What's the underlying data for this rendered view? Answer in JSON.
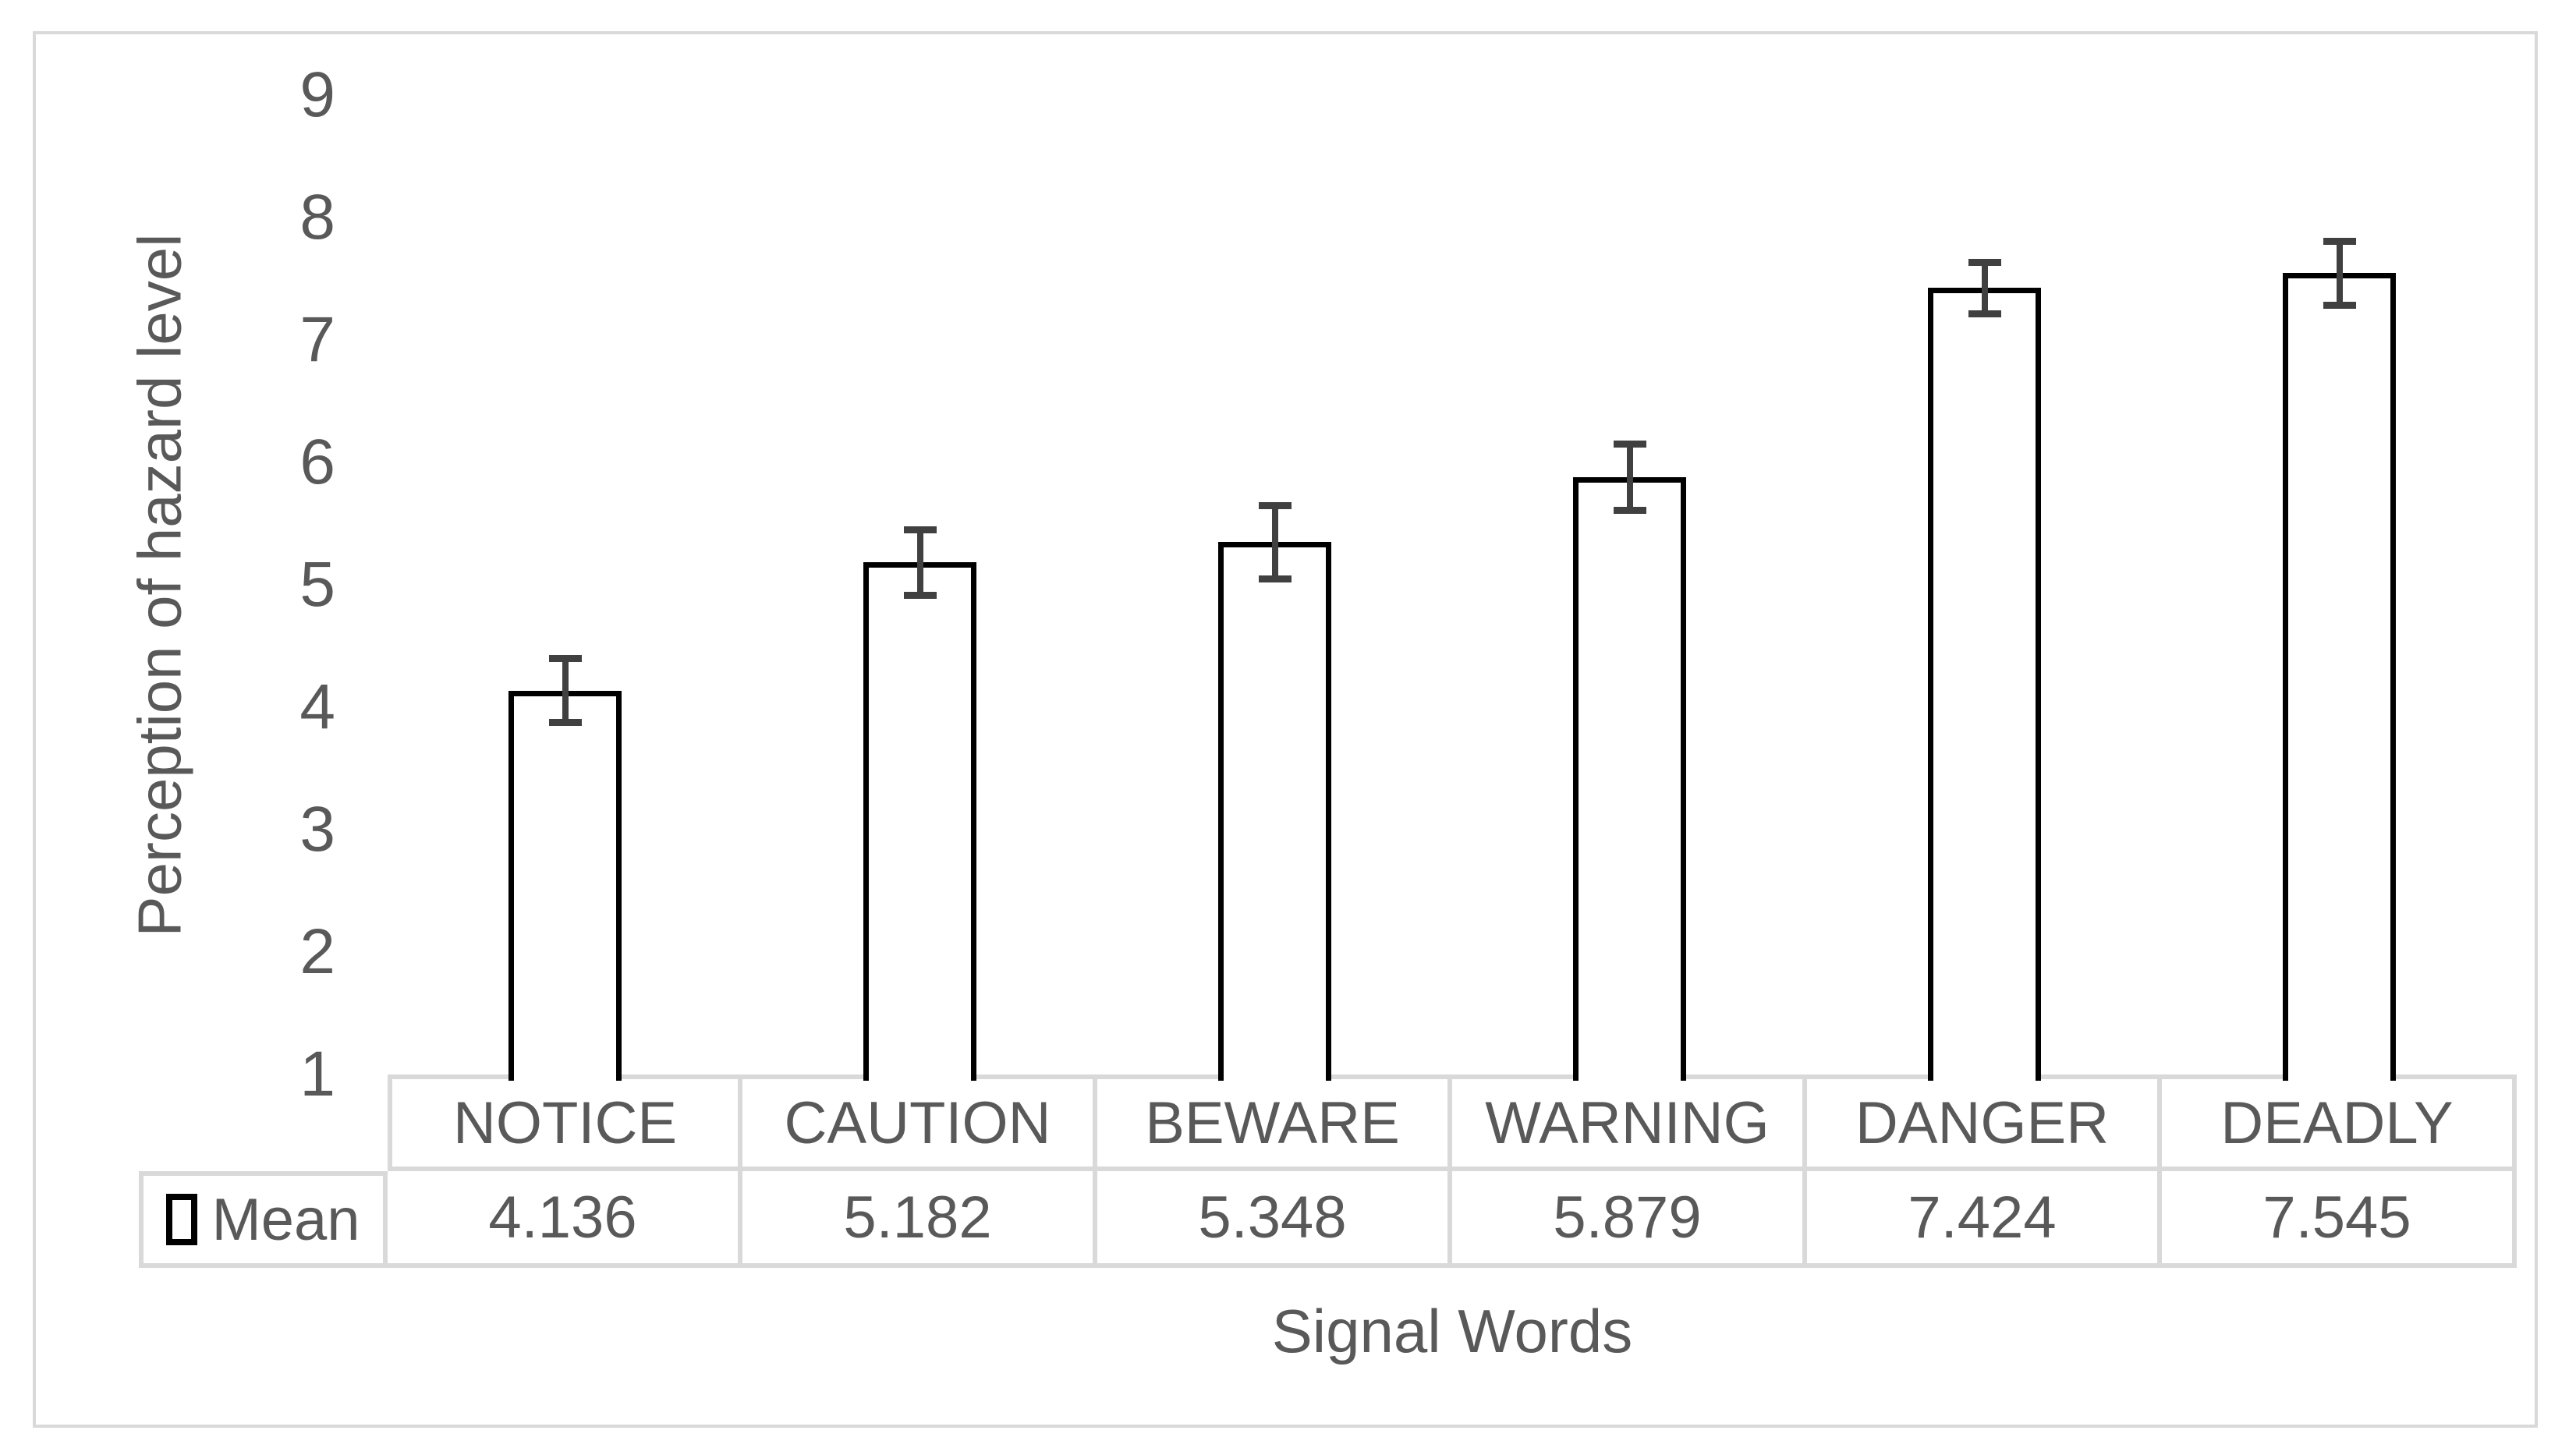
{
  "chart_data": {
    "type": "bar",
    "title": "",
    "categories": [
      "NOTICE",
      "CAUTION",
      "BEWARE",
      "WARNING",
      "DANGER",
      "DEADLY"
    ],
    "series": [
      {
        "name": "Mean",
        "values": [
          4.136,
          5.182,
          5.348,
          5.879,
          7.424,
          7.545
        ],
        "value_labels": [
          "4.136",
          "5.182",
          "5.348",
          "5.879",
          "7.424",
          "7.545"
        ],
        "error_bars": [
          0.26,
          0.27,
          0.3,
          0.27,
          0.21,
          0.26
        ]
      }
    ],
    "xlabel": "Signal Words",
    "ylabel": "Perception of hazard level",
    "ylim": [
      1,
      9
    ],
    "yticks": [
      "9",
      "8",
      "7",
      "6",
      "5",
      "4",
      "3",
      "2",
      "1"
    ],
    "grid": false,
    "legend_position": "data-table-left",
    "colors": {
      "bar_fill": "#ffffff",
      "bar_border": "#000000",
      "error_bar": "#404040",
      "table_border": "#d9d9d9",
      "text": "#595959",
      "figure_border": "#d9d9d9",
      "background": "#ffffff"
    }
  }
}
